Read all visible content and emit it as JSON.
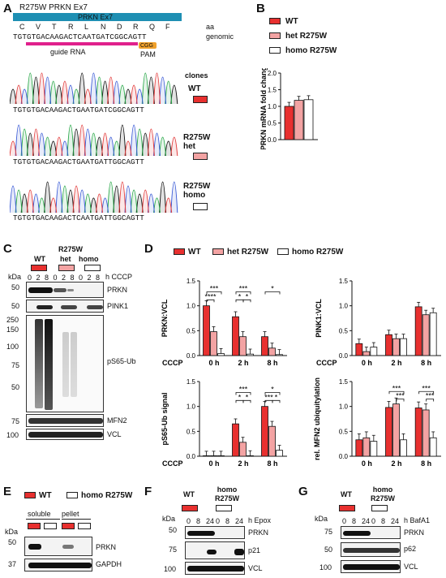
{
  "colors": {
    "wt": "#e8302f",
    "het": "#f3a3a3",
    "homo": "#ffffff"
  },
  "panels": {
    "A": "A",
    "B": "B",
    "C": "C",
    "D": "D",
    "E": "E",
    "F": "F",
    "G": "G"
  },
  "panelA": {
    "title": "R275W PRKN Ex7",
    "exon_label": "PRKN Ex7",
    "aa_letters": [
      "C",
      "V",
      "T",
      "R",
      "L",
      "N",
      "D",
      "R",
      "Q",
      "F"
    ],
    "aa_label": "aa",
    "genomic_seq": "TGTGTGACAAGACTCAATGATCGGCAGTT",
    "genomic_label": "genomic",
    "pam_seq": "CGG",
    "guide_label": "guide RNA",
    "pam_label": "PAM",
    "clones_label": "clones",
    "clones": [
      {
        "name": "WT",
        "seq": "TGTGTGACAAGACTGAATGATCGGCAGTT"
      },
      {
        "name": "R275W het",
        "seq": "TGTGTGACAAGACTGAATGATTGGCAGTT"
      },
      {
        "name": "R275W homo",
        "seq": "TGTGTGACAAGACTCAATGATTGGCAGTT"
      }
    ]
  },
  "legend3": {
    "wt": "WT",
    "het": "het R275W",
    "homo": "homo R275W"
  },
  "legend2": {
    "wt": "WT",
    "homo": "homo R275W"
  },
  "panelC": {
    "group_label": "R275W",
    "groups": [
      "WT",
      "het",
      "homo"
    ],
    "lanes": [
      "0",
      "2",
      "8",
      "0",
      "2",
      "8",
      "0",
      "2",
      "8"
    ],
    "treatment": "h CCCP",
    "kda_label": "kDa",
    "markers": [
      "50",
      "50",
      "250",
      "150",
      "100",
      "75",
      "50",
      "75",
      "100"
    ],
    "blots": [
      "PRKN",
      "PINK1",
      "pS65-Ub",
      "MFN2",
      "VCL"
    ]
  },
  "panelE": {
    "fractions": [
      "soluble",
      "pellet"
    ],
    "kda_label": "kDa",
    "markers": [
      "50",
      "37"
    ],
    "blots": [
      "PRKN",
      "GAPDH"
    ]
  },
  "panelF": {
    "groups": [
      "WT",
      "homo R275W"
    ],
    "lanes": [
      "0",
      "8",
      "24",
      "0",
      "8",
      "24"
    ],
    "treatment": "h Epox",
    "kda_label": "kDa",
    "markers": [
      "50",
      "75",
      "100"
    ],
    "blots": [
      "PRKN",
      "p21",
      "VCL"
    ]
  },
  "panelG": {
    "groups": [
      "WT",
      "homo R275W"
    ],
    "lanes": [
      "0",
      "8",
      "24",
      "0",
      "8",
      "24"
    ],
    "treatment": "h BafA1",
    "kda_label": "kDa",
    "markers": [
      "75",
      "50",
      "100"
    ],
    "blots": [
      "PRKN",
      "p62",
      "VCL"
    ]
  },
  "chart_data": [
    {
      "type": "bar",
      "title": "",
      "ylabel": "PRKN mRNA fold change",
      "ylim": [
        0,
        2
      ],
      "yticks": [
        "0.0",
        "0.5",
        "1.0",
        "1.5",
        "2.0"
      ],
      "categories": [
        ""
      ],
      "series": [
        {
          "name": "WT",
          "values": [
            1.0
          ]
        },
        {
          "name": "het R275W",
          "values": [
            1.18
          ]
        },
        {
          "name": "homo R275W",
          "values": [
            1.2
          ]
        }
      ]
    },
    {
      "type": "bar",
      "ylabel": "PRKN:VCL",
      "ylim": [
        0,
        1.5
      ],
      "yticks": [
        "0.0",
        "0.5",
        "1.0",
        "1.5"
      ],
      "x_prefix": "CCCP",
      "categories": [
        "0 h",
        "2 h",
        "8 h"
      ],
      "series": [
        {
          "name": "WT",
          "values": [
            1.0,
            0.78,
            0.38
          ]
        },
        {
          "name": "het R275W",
          "values": [
            0.48,
            0.38,
            0.15
          ]
        },
        {
          "name": "homo R275W",
          "values": [
            0.04,
            0.03,
            0.02
          ]
        }
      ],
      "annotations": [
        "***",
        "****",
        "***",
        "*",
        "*",
        "*"
      ]
    },
    {
      "type": "bar",
      "ylabel": "PINK1:VCL",
      "ylim": [
        0,
        1.5
      ],
      "yticks": [
        "0.0",
        "0.5",
        "1.0",
        "1.5"
      ],
      "x_prefix": "CCCP",
      "categories": [
        "0 h",
        "2 h",
        "8 h"
      ],
      "series": [
        {
          "name": "WT",
          "values": [
            0.24,
            0.42,
            0.98
          ]
        },
        {
          "name": "het R275W",
          "values": [
            0.08,
            0.34,
            0.82
          ]
        },
        {
          "name": "homo R275W",
          "values": [
            0.17,
            0.34,
            0.86
          ]
        }
      ],
      "annotations": []
    },
    {
      "type": "bar",
      "ylabel": "pS65-Ub signal",
      "ylim": [
        0,
        1.5
      ],
      "yticks": [
        "0.0",
        "0.5",
        "1.0",
        "1.5"
      ],
      "x_prefix": "CCCP",
      "categories": [
        "0 h",
        "2 h",
        "8 h"
      ],
      "series": [
        {
          "name": "WT",
          "values": [
            0.0,
            0.65,
            1.0
          ]
        },
        {
          "name": "het R275W",
          "values": [
            0.0,
            0.28,
            0.6
          ]
        },
        {
          "name": "homo R275W",
          "values": [
            0.0,
            0.01,
            0.12
          ]
        }
      ],
      "annotations": [
        "***",
        "*",
        "*",
        "***",
        "*",
        "*"
      ]
    },
    {
      "type": "bar",
      "ylabel": "rel. MFN2 ubiquitylation",
      "ylim": [
        0,
        1.5
      ],
      "yticks": [
        "0.0",
        "0.5",
        "1.0",
        "1.5"
      ],
      "x_prefix": "",
      "categories": [
        "0 h",
        "2 h",
        "8 h"
      ],
      "series": [
        {
          "name": "WT",
          "values": [
            0.33,
            0.98,
            0.97
          ]
        },
        {
          "name": "het R275W",
          "values": [
            0.37,
            1.05,
            0.93
          ]
        },
        {
          "name": "homo R275W",
          "values": [
            0.3,
            0.33,
            0.37
          ]
        }
      ],
      "annotations": [
        "***",
        "***",
        "***",
        "***"
      ]
    }
  ]
}
